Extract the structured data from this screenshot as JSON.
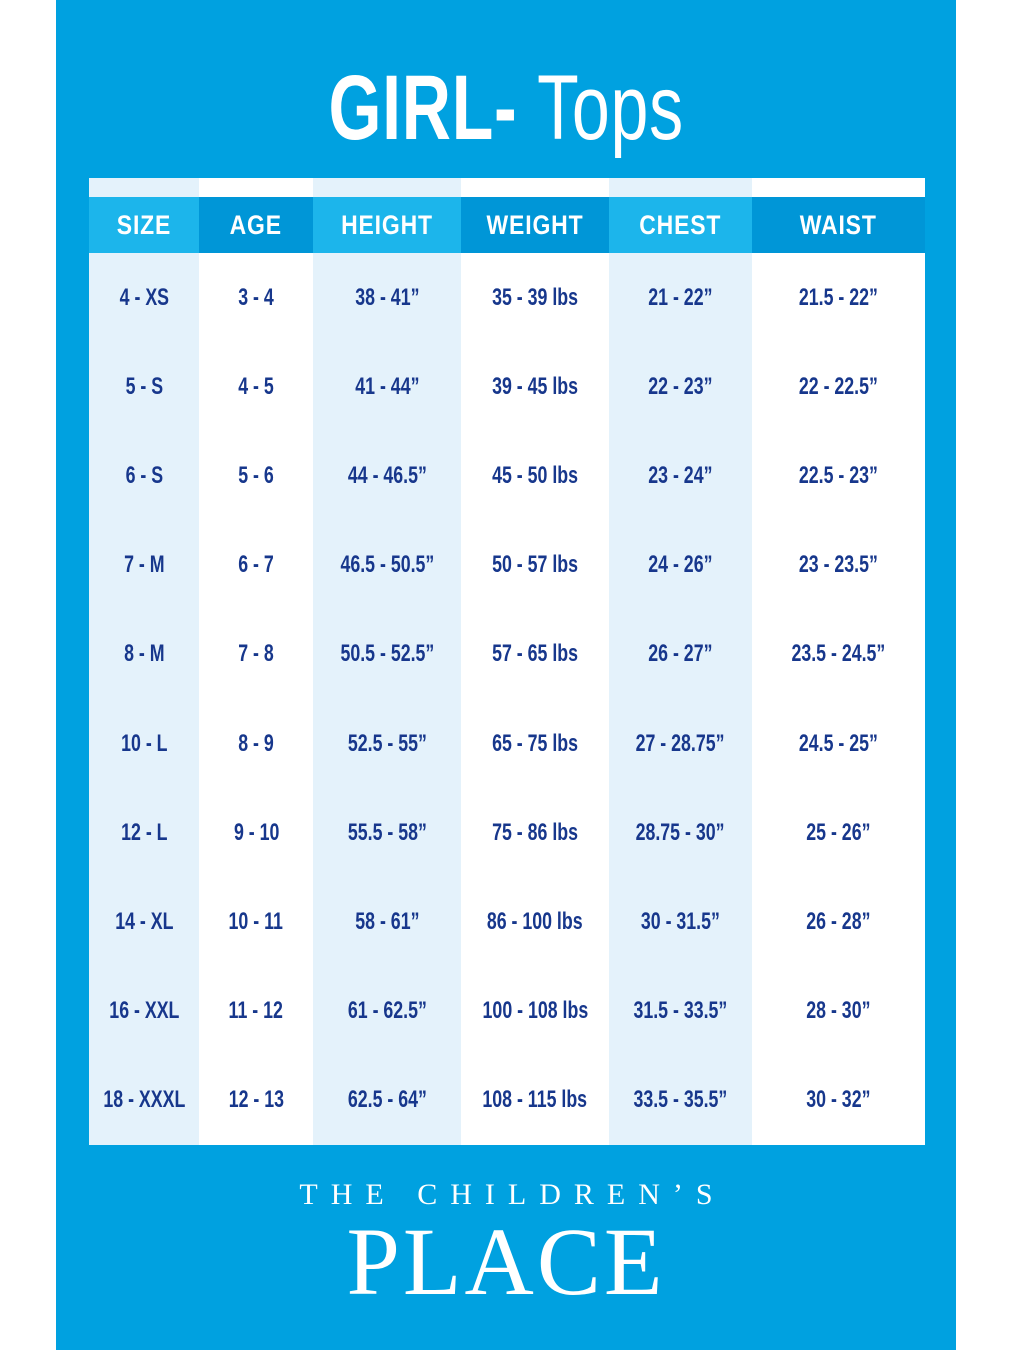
{
  "colors": {
    "panel_blue": "#00A1E0",
    "header_light_blue": "#1CB5EB",
    "header_dark_blue": "#0096D7",
    "column_pale_blue": "#E4F2FB",
    "column_white": "#FFFFFF",
    "text_navy": "#17378C",
    "text_white": "#FFFFFF"
  },
  "title": {
    "brand_bold": "GIRL-",
    "suffix": "Tops"
  },
  "table": {
    "columns": [
      {
        "label": "SIZE"
      },
      {
        "label": "AGE"
      },
      {
        "label": "HEIGHT"
      },
      {
        "label": "WEIGHT"
      },
      {
        "label": "CHEST"
      },
      {
        "label": "WAIST"
      }
    ],
    "rows": [
      [
        "4 - XS",
        "3 - 4",
        "38 - 41”",
        "35 - 39 lbs",
        "21 - 22”",
        "21.5 - 22”"
      ],
      [
        "5 - S",
        "4 - 5",
        "41 - 44”",
        "39 - 45 lbs",
        "22 - 23”",
        "22 - 22.5”"
      ],
      [
        "6 - S",
        "5 - 6",
        "44 - 46.5”",
        "45 - 50 lbs",
        "23 - 24”",
        "22.5 - 23”"
      ],
      [
        "7 - M",
        "6 - 7",
        "46.5 - 50.5”",
        "50 - 57 lbs",
        "24 - 26”",
        "23 - 23.5”"
      ],
      [
        "8 - M",
        "7 - 8",
        "50.5 - 52.5”",
        "57 - 65 lbs",
        "26 - 27”",
        "23.5 - 24.5”"
      ],
      [
        "10 - L",
        "8 - 9",
        "52.5 - 55”",
        "65 - 75 lbs",
        "27 - 28.75”",
        "24.5 - 25”"
      ],
      [
        "12 - L",
        "9 - 10",
        "55.5 - 58”",
        "75 - 86 lbs",
        "28.75 - 30”",
        "25 - 26”"
      ],
      [
        "14 - XL",
        "10 - 11",
        "58 - 61”",
        "86 - 100 lbs",
        "30 - 31.5”",
        "26 - 28”"
      ],
      [
        "16 - XXL",
        "11 - 12",
        "61 - 62.5”",
        "100 - 108 lbs",
        "31.5 - 33.5”",
        "28 - 30”"
      ],
      [
        "18 - XXXL",
        "12 - 13",
        "62.5 - 64”",
        "108 - 115 lbs",
        "33.5 - 35.5”",
        "30 - 32”"
      ]
    ]
  },
  "footer": {
    "brand_top": "THE CHILDREN’S",
    "brand_bottom": "PLACE"
  }
}
